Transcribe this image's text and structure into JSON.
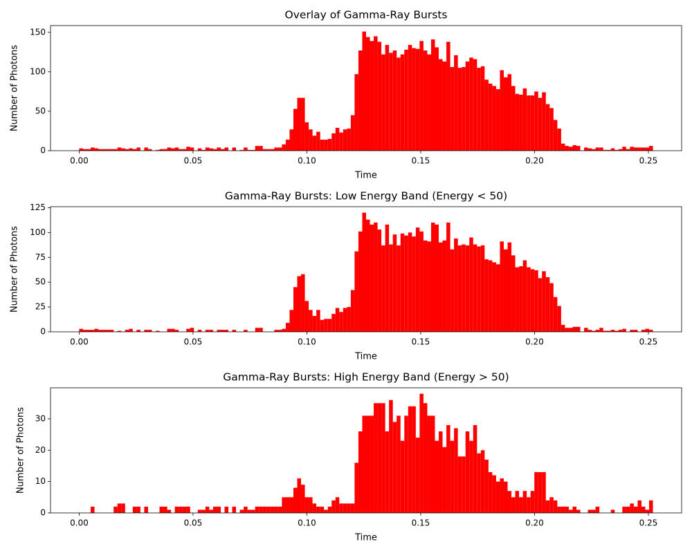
{
  "chart_data": [
    {
      "type": "histogram",
      "title": "Overlay of Gamma-Ray Bursts",
      "x_label": "Time",
      "y_label": "Number of Photons",
      "color": "#ff0000",
      "bins": [
        0,
        0.00168,
        0.00336,
        0.00504,
        0.00672,
        0.0084,
        0.01008,
        0.01176,
        0.01344,
        0.01512,
        0.0168,
        0.01848,
        0.02016,
        0.02184,
        0.02352,
        0.0252,
        0.02688,
        0.02856,
        0.03024,
        0.03192,
        0.0336,
        0.03528,
        0.03696,
        0.03864,
        0.04032,
        0.042,
        0.04368,
        0.04536,
        0.04704,
        0.04872,
        0.0504,
        0.05208,
        0.05376,
        0.05544,
        0.05712,
        0.0588,
        0.06048,
        0.06216,
        0.06384,
        0.06552,
        0.0672,
        0.06888,
        0.07056,
        0.07224,
        0.07392,
        0.0756,
        0.07728,
        0.07896,
        0.08064,
        0.08232,
        0.084,
        0.08568,
        0.08736,
        0.08904,
        0.09072,
        0.0924,
        0.09408,
        0.09576,
        0.09744,
        0.09912,
        0.1008,
        0.10248,
        0.10416,
        0.10584,
        0.10752,
        0.1092,
        0.11088,
        0.11256,
        0.11424,
        0.11592,
        0.1176,
        0.11928,
        0.12096,
        0.12264,
        0.12432,
        0.126,
        0.12768,
        0.12936,
        0.13104,
        0.13272,
        0.1344,
        0.13608,
        0.13776,
        0.13944,
        0.14112,
        0.1428,
        0.14448,
        0.14616,
        0.14784,
        0.14952,
        0.1512,
        0.15288,
        0.15456,
        0.15624,
        0.15792,
        0.1596,
        0.16128,
        0.16296,
        0.16464,
        0.16632,
        0.168,
        0.16968,
        0.17136,
        0.17304,
        0.17472,
        0.1764,
        0.17808,
        0.17976,
        0.18144,
        0.18312,
        0.1848,
        0.18648,
        0.18816,
        0.18984,
        0.19152,
        0.1932,
        0.19488,
        0.19656,
        0.19824,
        0.19992,
        0.2016,
        0.20328,
        0.20496,
        0.20664,
        0.20832,
        0.21,
        0.21168,
        0.21336,
        0.21504,
        0.21672,
        0.2184,
        0.22008,
        0.22176,
        0.22344,
        0.22512,
        0.2268,
        0.22848,
        0.23016,
        0.23184,
        0.23352,
        0.2352,
        0.23688,
        0.23856,
        0.24024,
        0.24192,
        0.2436,
        0.24528,
        0.24696,
        0.24864,
        0.25032,
        0.252
      ],
      "values": [
        3,
        2,
        2,
        4,
        3,
        2,
        2,
        2,
        2,
        2,
        4,
        3,
        2,
        3,
        2,
        4,
        0,
        4,
        2,
        0,
        1,
        2,
        2,
        4,
        3,
        4,
        2,
        2,
        5,
        4,
        0,
        3,
        1,
        4,
        3,
        2,
        4,
        2,
        4,
        0,
        4,
        0,
        1,
        4,
        1,
        1,
        6,
        6,
        2,
        2,
        2,
        4,
        4,
        8,
        14,
        27,
        53,
        67,
        67,
        36,
        27,
        19,
        24,
        14,
        14,
        15,
        22,
        29,
        23,
        27,
        28,
        45,
        97,
        127,
        151,
        144,
        139,
        145,
        138,
        122,
        134,
        124,
        127,
        118,
        122,
        128,
        134,
        130,
        129,
        139,
        127,
        122,
        141,
        131,
        116,
        113,
        138,
        106,
        121,
        105,
        106,
        113,
        118,
        116,
        105,
        107,
        90,
        85,
        82,
        78,
        102,
        93,
        97,
        82,
        72,
        71,
        79,
        70,
        70,
        75,
        67,
        74,
        59,
        54,
        39,
        28,
        9,
        6,
        5,
        7,
        6,
        0,
        4,
        3,
        2,
        4,
        4,
        1,
        1,
        3,
        1,
        2,
        5,
        2,
        5,
        4,
        4,
        4,
        4,
        6
      ],
      "xlim": [
        -0.0126,
        0.2646
      ],
      "ylim": [
        0,
        158.55
      ],
      "xticks": [
        {
          "value": 0,
          "label": "0.00"
        },
        {
          "value": 0.05,
          "label": "0.05"
        },
        {
          "value": 0.1,
          "label": "0.10"
        },
        {
          "value": 0.15,
          "label": "0.15"
        },
        {
          "value": 0.2,
          "label": "0.20"
        },
        {
          "value": 0.25,
          "label": "0.25"
        }
      ],
      "yticks": [
        0,
        50,
        100,
        150
      ]
    },
    {
      "type": "histogram",
      "title": "Gamma-Ray Bursts: Low Energy Band (Energy < 50)",
      "x_label": "Time",
      "y_label": "Number of Photons",
      "color": "#ff0000",
      "bins": [
        0,
        0.00168,
        0.00336,
        0.00504,
        0.00672,
        0.0084,
        0.01008,
        0.01176,
        0.01344,
        0.01512,
        0.0168,
        0.01848,
        0.02016,
        0.02184,
        0.02352,
        0.0252,
        0.02688,
        0.02856,
        0.03024,
        0.03192,
        0.0336,
        0.03528,
        0.03696,
        0.03864,
        0.04032,
        0.042,
        0.04368,
        0.04536,
        0.04704,
        0.04872,
        0.0504,
        0.05208,
        0.05376,
        0.05544,
        0.05712,
        0.0588,
        0.06048,
        0.06216,
        0.06384,
        0.06552,
        0.0672,
        0.06888,
        0.07056,
        0.07224,
        0.07392,
        0.0756,
        0.07728,
        0.07896,
        0.08064,
        0.08232,
        0.084,
        0.08568,
        0.08736,
        0.08904,
        0.09072,
        0.0924,
        0.09408,
        0.09576,
        0.09744,
        0.09912,
        0.1008,
        0.10248,
        0.10416,
        0.10584,
        0.10752,
        0.1092,
        0.11088,
        0.11256,
        0.11424,
        0.11592,
        0.1176,
        0.11928,
        0.12096,
        0.12264,
        0.12432,
        0.126,
        0.12768,
        0.12936,
        0.13104,
        0.13272,
        0.1344,
        0.13608,
        0.13776,
        0.13944,
        0.14112,
        0.1428,
        0.14448,
        0.14616,
        0.14784,
        0.14952,
        0.1512,
        0.15288,
        0.15456,
        0.15624,
        0.15792,
        0.1596,
        0.16128,
        0.16296,
        0.16464,
        0.16632,
        0.168,
        0.16968,
        0.17136,
        0.17304,
        0.17472,
        0.1764,
        0.17808,
        0.17976,
        0.18144,
        0.18312,
        0.1848,
        0.18648,
        0.18816,
        0.18984,
        0.19152,
        0.1932,
        0.19488,
        0.19656,
        0.19824,
        0.19992,
        0.2016,
        0.20328,
        0.20496,
        0.20664,
        0.20832,
        0.21,
        0.21168,
        0.21336,
        0.21504,
        0.21672,
        0.2184,
        0.22008,
        0.22176,
        0.22344,
        0.22512,
        0.2268,
        0.22848,
        0.23016,
        0.23184,
        0.23352,
        0.2352,
        0.23688,
        0.23856,
        0.24024,
        0.24192,
        0.2436,
        0.24528,
        0.24696,
        0.24864,
        0.25032,
        0.252
      ],
      "values": [
        3,
        2,
        2,
        2,
        3,
        2,
        2,
        2,
        2,
        0,
        1,
        0,
        2,
        3,
        0,
        2,
        0,
        2,
        2,
        0,
        1,
        0,
        0,
        3,
        3,
        2,
        0,
        0,
        3,
        4,
        0,
        2,
        0,
        2,
        2,
        0,
        2,
        2,
        2,
        0,
        2,
        0,
        0,
        2,
        0,
        0,
        4,
        4,
        0,
        0,
        0,
        2,
        2,
        3,
        9,
        22,
        45,
        56,
        58,
        31,
        22,
        16,
        22,
        12,
        13,
        13,
        18,
        24,
        20,
        24,
        25,
        42,
        81,
        101,
        120,
        113,
        108,
        110,
        103,
        87,
        108,
        88,
        98,
        87,
        99,
        97,
        100,
        96,
        105,
        101,
        92,
        91,
        110,
        108,
        90,
        92,
        110,
        83,
        94,
        87,
        88,
        87,
        95,
        88,
        86,
        87,
        73,
        72,
        70,
        68,
        91,
        83,
        90,
        77,
        65,
        66,
        72,
        65,
        63,
        62,
        54,
        61,
        55,
        49,
        35,
        26,
        7,
        4,
        4,
        5,
        5,
        0,
        4,
        2,
        1,
        2,
        4,
        1,
        1,
        2,
        1,
        2,
        3,
        0,
        2,
        2,
        0,
        2,
        3,
        2
      ],
      "xlim": [
        -0.0126,
        0.2646
      ],
      "ylim": [
        0,
        126
      ],
      "xticks": [
        {
          "value": 0,
          "label": "0.00"
        },
        {
          "value": 0.05,
          "label": "0.05"
        },
        {
          "value": 0.1,
          "label": "0.10"
        },
        {
          "value": 0.15,
          "label": "0.15"
        },
        {
          "value": 0.2,
          "label": "0.20"
        },
        {
          "value": 0.25,
          "label": "0.25"
        }
      ],
      "yticks": [
        0,
        25,
        50,
        75,
        100,
        125
      ]
    },
    {
      "type": "histogram",
      "title": "Gamma-Ray Bursts: High Energy Band (Energy > 50)",
      "x_label": "Time",
      "y_label": "Number of Photons",
      "color": "#ff0000",
      "bins": [
        0,
        0.00168,
        0.00336,
        0.00504,
        0.00672,
        0.0084,
        0.01008,
        0.01176,
        0.01344,
        0.01512,
        0.0168,
        0.01848,
        0.02016,
        0.02184,
        0.02352,
        0.0252,
        0.02688,
        0.02856,
        0.03024,
        0.03192,
        0.0336,
        0.03528,
        0.03696,
        0.03864,
        0.04032,
        0.042,
        0.04368,
        0.04536,
        0.04704,
        0.04872,
        0.0504,
        0.05208,
        0.05376,
        0.05544,
        0.05712,
        0.0588,
        0.06048,
        0.06216,
        0.06384,
        0.06552,
        0.0672,
        0.06888,
        0.07056,
        0.07224,
        0.07392,
        0.0756,
        0.07728,
        0.07896,
        0.08064,
        0.08232,
        0.084,
        0.08568,
        0.08736,
        0.08904,
        0.09072,
        0.0924,
        0.09408,
        0.09576,
        0.09744,
        0.09912,
        0.1008,
        0.10248,
        0.10416,
        0.10584,
        0.10752,
        0.1092,
        0.11088,
        0.11256,
        0.11424,
        0.11592,
        0.1176,
        0.11928,
        0.12096,
        0.12264,
        0.12432,
        0.126,
        0.12768,
        0.12936,
        0.13104,
        0.13272,
        0.1344,
        0.13608,
        0.13776,
        0.13944,
        0.14112,
        0.1428,
        0.14448,
        0.14616,
        0.14784,
        0.14952,
        0.1512,
        0.15288,
        0.15456,
        0.15624,
        0.15792,
        0.1596,
        0.16128,
        0.16296,
        0.16464,
        0.16632,
        0.168,
        0.16968,
        0.17136,
        0.17304,
        0.17472,
        0.1764,
        0.17808,
        0.17976,
        0.18144,
        0.18312,
        0.1848,
        0.18648,
        0.18816,
        0.18984,
        0.19152,
        0.1932,
        0.19488,
        0.19656,
        0.19824,
        0.19992,
        0.2016,
        0.20328,
        0.20496,
        0.20664,
        0.20832,
        0.21,
        0.21168,
        0.21336,
        0.21504,
        0.21672,
        0.2184,
        0.22008,
        0.22176,
        0.22344,
        0.22512,
        0.2268,
        0.22848,
        0.23016,
        0.23184,
        0.23352,
        0.2352,
        0.23688,
        0.23856,
        0.24024,
        0.24192,
        0.2436,
        0.24528,
        0.24696,
        0.24864,
        0.25032,
        0.252
      ],
      "values": [
        0,
        0,
        0,
        2,
        0,
        0,
        0,
        0,
        0,
        2,
        3,
        3,
        0,
        0,
        2,
        2,
        0,
        2,
        0,
        0,
        0,
        2,
        2,
        1,
        0,
        2,
        2,
        2,
        2,
        0,
        0,
        1,
        1,
        2,
        1,
        2,
        2,
        0,
        2,
        0,
        2,
        0,
        1,
        2,
        1,
        1,
        2,
        2,
        2,
        2,
        2,
        2,
        2,
        5,
        5,
        5,
        8,
        11,
        9,
        5,
        5,
        3,
        2,
        2,
        1,
        2,
        4,
        5,
        3,
        3,
        3,
        3,
        16,
        26,
        31,
        31,
        31,
        35,
        35,
        35,
        26,
        36,
        29,
        31,
        23,
        31,
        34,
        34,
        24,
        38,
        35,
        31,
        31,
        23,
        26,
        21,
        28,
        23,
        27,
        18,
        18,
        26,
        23,
        28,
        19,
        20,
        17,
        13,
        12,
        10,
        11,
        10,
        7,
        5,
        7,
        5,
        7,
        5,
        7,
        13,
        13,
        13,
        4,
        5,
        4,
        2,
        2,
        2,
        1,
        2,
        1,
        0,
        0,
        1,
        1,
        2,
        0,
        0,
        0,
        1,
        0,
        0,
        2,
        2,
        3,
        2,
        4,
        2,
        1,
        4
      ],
      "xlim": [
        -0.0126,
        0.2646
      ],
      "ylim": [
        0,
        39.9
      ],
      "xticks": [
        {
          "value": 0,
          "label": "0.00"
        },
        {
          "value": 0.05,
          "label": "0.05"
        },
        {
          "value": 0.1,
          "label": "0.10"
        },
        {
          "value": 0.15,
          "label": "0.15"
        },
        {
          "value": 0.2,
          "label": "0.20"
        },
        {
          "value": 0.25,
          "label": "0.25"
        }
      ],
      "yticks": [
        0,
        10,
        20,
        30
      ]
    }
  ]
}
